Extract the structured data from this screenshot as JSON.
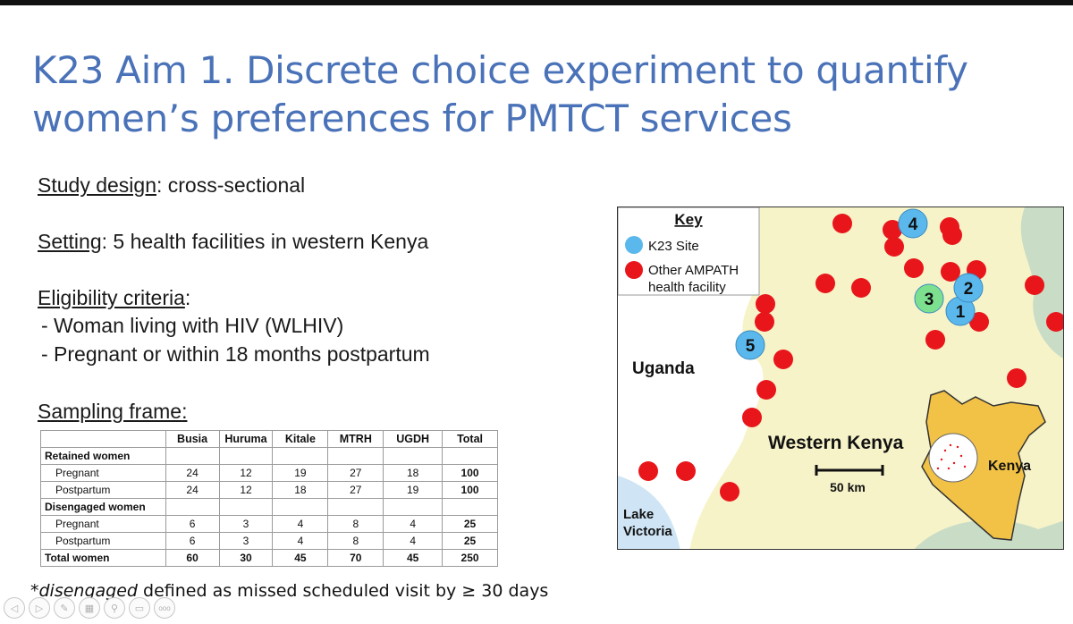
{
  "slide": {
    "title_line1": "K23 Aim 1. Discrete choice experiment to quantify",
    "title_line2": "women’s preferences for PMTCT services",
    "study_design": {
      "label": "Study design",
      "value": ": cross-sectional"
    },
    "setting": {
      "label": "Setting",
      "value": ": 5 health facilities in western Kenya"
    },
    "eligibility": {
      "label": "Eligibility criteria",
      "suffix": ":",
      "items": [
        "- Woman living with HIV (WLHIV)",
        "- Pregnant or within 18 months postpartum"
      ]
    },
    "sampling": {
      "label": "Sampling frame",
      "suffix": ":"
    },
    "footnote": {
      "star": "*",
      "italic": "disengaged",
      "rest": " defined as missed scheduled visit by ≥ 30 days"
    }
  },
  "table": {
    "headers": [
      "",
      "Busia",
      "Huruma",
      "Kitale",
      "MTRH",
      "UGDH",
      "Total"
    ],
    "rows": [
      {
        "label": "Retained women",
        "group": true,
        "values": [
          "",
          "",
          "",
          "",
          "",
          ""
        ]
      },
      {
        "label": "Pregnant",
        "group": false,
        "values": [
          "24",
          "12",
          "19",
          "27",
          "18",
          "100"
        ]
      },
      {
        "label": "Postpartum",
        "group": false,
        "values": [
          "24",
          "12",
          "18",
          "27",
          "19",
          "100"
        ]
      },
      {
        "label": "Disengaged women",
        "group": true,
        "values": [
          "",
          "",
          "",
          "",
          "",
          ""
        ]
      },
      {
        "label": "Pregnant",
        "group": false,
        "values": [
          "6",
          "3",
          "4",
          "8",
          "4",
          "25"
        ]
      },
      {
        "label": "Postpartum",
        "group": false,
        "values": [
          "6",
          "3",
          "4",
          "8",
          "4",
          "25"
        ]
      },
      {
        "label": "Total women",
        "group": false,
        "total": true,
        "values": [
          "60",
          "30",
          "45",
          "70",
          "45",
          "250"
        ]
      }
    ]
  },
  "map": {
    "key_title": "Key",
    "key_k23": "K23 Site",
    "key_other_line1": "Other AMPATH",
    "key_other_line2": "health facility",
    "uganda": "Uganda",
    "western_kenya": "Western Kenya",
    "scale": "50 km",
    "lake_line1": "Lake",
    "lake_line2": "Victoria",
    "kenya": "Kenya",
    "sites": [
      "1",
      "2",
      "3",
      "4",
      "5"
    ],
    "colors": {
      "k23": "#5bb8ec",
      "other": "#e8161b",
      "highlight": "#7de08f",
      "land": "#f7f3c9",
      "kenya": "#f2c246"
    }
  },
  "toolbar": {
    "icons": [
      "prev-icon",
      "next-icon",
      "pen-icon",
      "slides-icon",
      "zoom-icon",
      "subtitle-icon",
      "more-icon"
    ],
    "more_glyph": "ooo"
  }
}
